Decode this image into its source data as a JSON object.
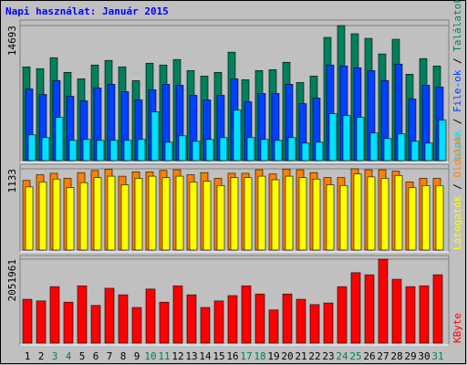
{
  "chart_data": [
    {
      "type": "bar",
      "title": "Napi használat: Január 2015",
      "legend_separator": " / ",
      "series": [
        {
          "name": "Találatok",
          "color": "#00805c",
          "values": [
            10200,
            10000,
            11200,
            9600,
            8900,
            10400,
            10900,
            10200,
            8700,
            10600,
            10400,
            11000,
            9800,
            9200,
            9600,
            11800,
            8800,
            9800,
            9900,
            10700,
            8500,
            9200,
            13400,
            14693,
            13800,
            13300,
            11600,
            13200,
            9400,
            11100,
            10300
          ]
        },
        {
          "name": "File-ok",
          "color": "#0040ff",
          "values": [
            7800,
            7200,
            8700,
            7000,
            6500,
            7900,
            8300,
            7500,
            6600,
            7700,
            8300,
            8200,
            7100,
            6600,
            7100,
            8900,
            6400,
            7300,
            7300,
            8300,
            6200,
            6800,
            10400,
            10300,
            10100,
            9800,
            8700,
            10500,
            6700,
            8200,
            8000
          ]
        },
        {
          "name": "Lapok",
          "color": "#00e0ff",
          "values": [
            2800,
            2500,
            4700,
            2200,
            2300,
            2200,
            2200,
            2200,
            2300,
            5300,
            2000,
            2700,
            2100,
            2300,
            2500,
            5500,
            2500,
            2300,
            2200,
            2500,
            1900,
            2000,
            5100,
            4900,
            4700,
            3000,
            2400,
            2900,
            2100,
            1900,
            4400
          ],
          "ylim": [
            0,
            14693
          ],
          "yticks": [
            14693
          ]
        }
      ],
      "ylim": [
        0,
        14693
      ],
      "yticks": [
        14693
      ]
    },
    {
      "type": "bar",
      "legend_separator": " / ",
      "series": [
        {
          "name": "Oldalak",
          "color": "#ff8000",
          "values": [
            970,
            1050,
            1070,
            1000,
            1080,
            1110,
            1130,
            1030,
            1090,
            1090,
            1110,
            1120,
            1050,
            1080,
            1000,
            1070,
            1070,
            1120,
            1060,
            1130,
            1120,
            1080,
            1010,
            1010,
            1133,
            1120,
            1120,
            1100,
            950,
            1000,
            1000
          ]
        },
        {
          "name": "Látogatók",
          "color": "#ffff00",
          "values": [
            880,
            950,
            990,
            870,
            940,
            1010,
            1030,
            910,
            1000,
            1030,
            1010,
            1030,
            950,
            960,
            900,
            1010,
            1010,
            1030,
            980,
            1030,
            1010,
            990,
            910,
            900,
            1060,
            1020,
            1000,
            1040,
            870,
            900,
            900
          ]
        }
      ],
      "ylim": [
        0,
        1133
      ],
      "yticks": [
        1133
      ]
    },
    {
      "type": "bar",
      "categories": [
        "1",
        "2",
        "3",
        "4",
        "5",
        "6",
        "7",
        "8",
        "9",
        "10",
        "11",
        "12",
        "13",
        "14",
        "15",
        "16",
        "17",
        "18",
        "19",
        "20",
        "21",
        "22",
        "23",
        "24",
        "25",
        "26",
        "27",
        "28",
        "29",
        "30",
        "31"
      ],
      "label_colors": [
        "#000000",
        "#000000",
        "#00805c",
        "#00805c",
        "#000000",
        "#000000",
        "#000000",
        "#000000",
        "#000000",
        "#00805c",
        "#00805c",
        "#000000",
        "#000000",
        "#000000",
        "#000000",
        "#000000",
        "#00805c",
        "#00805c",
        "#000000",
        "#000000",
        "#000000",
        "#000000",
        "#000000",
        "#00805c",
        "#00805c",
        "#000000",
        "#000000",
        "#000000",
        "#000000",
        "#000000",
        "#00805c"
      ],
      "series": [
        {
          "name": "KByte",
          "color": "#ff0000",
          "values": [
            1070000,
            1030000,
            1380000,
            1000000,
            1400000,
            920000,
            1340000,
            1180000,
            870000,
            1320000,
            1000000,
            1400000,
            1180000,
            870000,
            1030000,
            1160000,
            1400000,
            1200000,
            810000,
            1200000,
            1070000,
            940000,
            980000,
            1380000,
            1720000,
            1670000,
            2051961,
            1560000,
            1380000,
            1400000,
            1670000
          ]
        }
      ],
      "ylim": [
        0,
        2051961
      ],
      "yticks": [
        2051961
      ]
    }
  ]
}
